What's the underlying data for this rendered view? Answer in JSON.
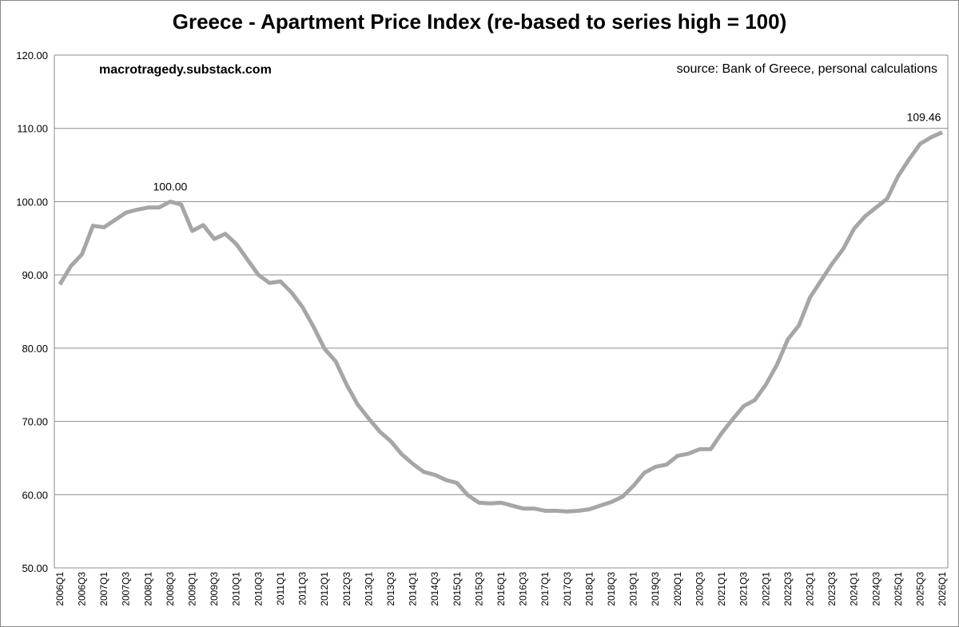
{
  "chart_data": {
    "type": "line",
    "title": "Greece - Apartment Price Index (re-based to series high = 100)",
    "annotations": [
      "macrotragedy.substack.com",
      "source: Bank of Greece, personal calculations"
    ],
    "categories": [
      "2006Q1",
      null,
      "2006Q3",
      null,
      "2007Q1",
      null,
      "2007Q3",
      null,
      "2008Q1",
      null,
      "2008Q3",
      null,
      "2009Q1",
      null,
      "2009Q3",
      null,
      "2010Q1",
      null,
      "2010Q3",
      null,
      "2011Q1",
      null,
      "2011Q3",
      null,
      "2012Q1",
      null,
      "2012Q3",
      null,
      "2013Q1",
      null,
      "2013Q3",
      null,
      "2014Q1",
      null,
      "2014Q3",
      null,
      "2015Q1",
      null,
      "2015Q3",
      null,
      "2016Q1",
      null,
      "2016Q3",
      null,
      "2017Q1",
      null,
      "2017Q3",
      null,
      "2018Q1",
      null,
      "2018Q3",
      null,
      "2019Q1",
      null,
      "2019Q3",
      null,
      "2020Q1",
      null,
      "2020Q3",
      null,
      "2021Q1",
      null,
      "2021Q3",
      null,
      "2022Q1",
      null,
      "2022Q3",
      null,
      "2023Q1",
      null,
      "2023Q3",
      null,
      "2024Q1",
      null,
      "2024Q3",
      null,
      "2025Q1",
      null,
      "2025Q3",
      null,
      "2026Q1"
    ],
    "series": [
      {
        "color": "#a6a6a6",
        "values": [
          88.7,
          91.2,
          92.8,
          96.7,
          96.5,
          97.5,
          98.5,
          98.9,
          99.2,
          99.2,
          100.0,
          99.6,
          96.0,
          96.8,
          94.9,
          95.6,
          94.2,
          92.1,
          90.0,
          88.9,
          89.1,
          87.6,
          85.6,
          82.9,
          79.9,
          78.2,
          75.0,
          72.3,
          70.4,
          68.6,
          67.3,
          65.5,
          64.2,
          63.1,
          62.7,
          62.0,
          61.6,
          59.9,
          58.9,
          58.8,
          58.9,
          58.5,
          58.1,
          58.1,
          57.8,
          57.8,
          57.7,
          57.8,
          58.0,
          58.5,
          59.0,
          59.7,
          61.2,
          63.0,
          63.8,
          64.1,
          65.3,
          65.6,
          66.2,
          66.2,
          68.4,
          70.3,
          72.1,
          72.9,
          75.0,
          77.7,
          81.2,
          83.1,
          86.9,
          89.2,
          91.5,
          93.5,
          96.3,
          98.0,
          99.2,
          100.4,
          103.5,
          105.8,
          107.9,
          108.8,
          109.46
        ],
        "value_labels": [
          null,
          null,
          null,
          null,
          null,
          null,
          null,
          null,
          null,
          null,
          "100.00",
          null,
          null,
          null,
          null,
          null,
          null,
          null,
          null,
          null,
          null,
          null,
          null,
          null,
          null,
          null,
          null,
          null,
          null,
          null,
          null,
          null,
          null,
          null,
          null,
          null,
          null,
          null,
          null,
          null,
          null,
          null,
          null,
          null,
          null,
          null,
          null,
          null,
          null,
          null,
          null,
          null,
          null,
          null,
          null,
          null,
          null,
          null,
          null,
          null,
          null,
          null,
          null,
          null,
          null,
          null,
          null,
          null,
          null,
          null,
          null,
          null,
          null,
          null,
          null,
          null,
          null,
          null,
          null,
          null,
          "109.46"
        ]
      }
    ],
    "ylim": [
      50,
      120
    ],
    "yticks": [
      {
        "value": 50,
        "label": "50.00"
      },
      {
        "value": 60,
        "label": "60.00"
      },
      {
        "value": 70,
        "label": "70.00"
      },
      {
        "value": 80,
        "label": "80.00"
      },
      {
        "value": 90,
        "label": "90.00"
      },
      {
        "value": 100,
        "label": "100.00"
      },
      {
        "value": 110,
        "label": "110.00"
      },
      {
        "value": 120,
        "label": "120.00"
      }
    ],
    "grid": true
  }
}
